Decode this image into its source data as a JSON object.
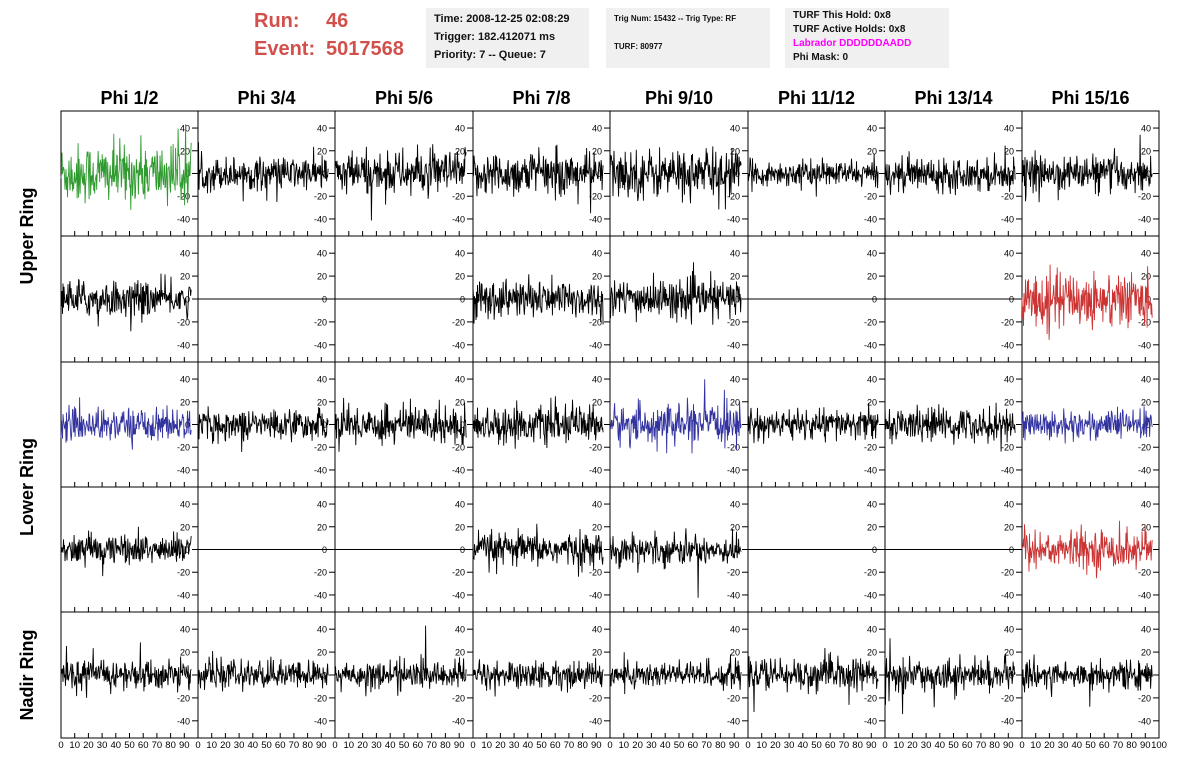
{
  "header": {
    "run_label": "Run:",
    "run_value": "46",
    "event_label": "Event:",
    "event_value": "5017568",
    "time": "Time: 2008-12-25 02:08:29",
    "trigger": "Trigger: 182.412071 ms",
    "priority": "Priority: 7 -- Queue: 7",
    "trig_num": "Trig Num: 15432 -- Trig Type: RF",
    "turf": "TURF: 80977",
    "turf_hold": "TURF This Hold: 0x8",
    "turf_active": "TURF Active Holds: 0x8",
    "labrador": "Labrador DDDDDDAADD",
    "phi_mask": "Phi Mask: 0",
    "labrador_color": "#ff00ff",
    "run_color": "#d2504c"
  },
  "chart_data": {
    "type": "line",
    "columns": [
      "Phi 1/2",
      "Phi 3/4",
      "Phi 5/6",
      "Phi 7/8",
      "Phi 9/10",
      "Phi 11/12",
      "Phi 13/14",
      "Phi 15/16"
    ],
    "rows": [
      "Upper Ring",
      "Upper Ring",
      "Lower Ring",
      "Lower Ring",
      "Nadir Ring"
    ],
    "row_labels": [
      "Upper Ring",
      "Lower Ring",
      "Nadir Ring"
    ],
    "xlim": [
      0,
      100
    ],
    "ylim": [
      -55,
      55
    ],
    "x_ticks": [
      0,
      10,
      20,
      30,
      40,
      50,
      60,
      70,
      80,
      90,
      100
    ],
    "x_tick_labels": [
      "0",
      "10",
      "20",
      "30",
      "40",
      "50",
      "60",
      "70",
      "80",
      "90",
      "100"
    ],
    "y_ticks": [
      -40,
      -20,
      0,
      20,
      40
    ],
    "y_tick_labels": [
      "-40",
      "-20",
      "0",
      "20",
      "40"
    ],
    "colors": {
      "green": "#2e9a2e",
      "blue": "#3333a0",
      "red": "#cc3333",
      "black": "#000000"
    },
    "trace_note_amplitudes": [
      [
        22,
        12,
        16,
        16,
        18,
        9,
        12,
        13
      ],
      [
        13,
        0,
        0,
        14,
        14,
        0,
        0,
        20
      ],
      [
        12,
        11,
        14,
        13,
        14,
        11,
        12,
        11
      ],
      [
        11,
        0,
        0,
        12,
        11,
        0,
        0,
        14
      ],
      [
        11,
        10,
        10,
        10,
        10,
        12,
        11,
        10
      ]
    ],
    "trace_colors": [
      [
        "green",
        "black",
        "black",
        "black",
        "black",
        "black",
        "black",
        "black"
      ],
      [
        "black",
        "black",
        "black",
        "black",
        "black",
        "black",
        "black",
        "red"
      ],
      [
        "blue",
        "black",
        "black",
        "black",
        "blue",
        "black",
        "black",
        "blue"
      ],
      [
        "black",
        "black",
        "black",
        "black",
        "black",
        "black",
        "black",
        "red"
      ],
      [
        "black",
        "black",
        "black",
        "black",
        "black",
        "black",
        "black",
        "black"
      ]
    ],
    "n_samples": 260,
    "x_max_sample": 95
  }
}
